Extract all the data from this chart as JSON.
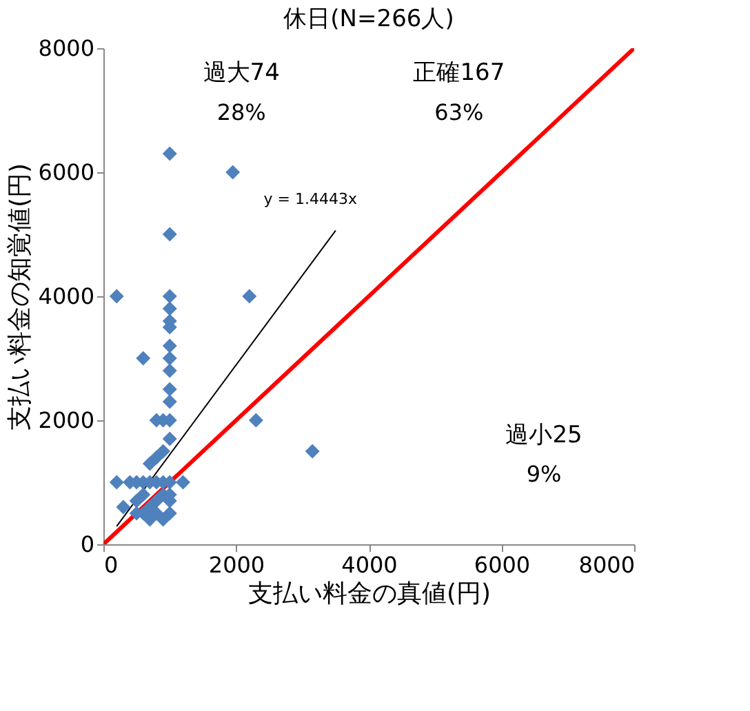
{
  "chart_data": {
    "type": "scatter",
    "title": "休日(N=266人)",
    "xlabel": "支払い料金の真値(円)",
    "ylabel": "支払い料金の知覚値(円)",
    "xlim": [
      0,
      8000
    ],
    "ylim": [
      0,
      8000
    ],
    "xticks": [
      0,
      2000,
      4000,
      6000,
      8000
    ],
    "yticks": [
      0,
      2000,
      4000,
      6000,
      8000
    ],
    "grid": false,
    "legend": false,
    "marker": "diamond",
    "series": [
      {
        "color": "#4f81bd",
        "x": [
          1000,
          1950,
          1000,
          200,
          1000,
          2200,
          1000,
          1000,
          1000,
          600,
          1000,
          1000,
          1000,
          1000,
          1000,
          1000,
          800,
          900,
          2300,
          1000,
          900,
          800,
          700,
          3150,
          1000,
          1200,
          200,
          400,
          500,
          600,
          700,
          800,
          900,
          300,
          500,
          600,
          700,
          800,
          900,
          1000,
          800,
          900,
          1000,
          700,
          600,
          1000,
          500
        ],
        "values": [
          6300,
          6000,
          5000,
          4000,
          4000,
          4000,
          3800,
          3600,
          3500,
          3000,
          3200,
          3000,
          2800,
          2500,
          2300,
          2000,
          2000,
          2000,
          2000,
          1700,
          1500,
          1400,
          1300,
          1500,
          1000,
          1000,
          1000,
          1000,
          1000,
          1000,
          1000,
          1000,
          1000,
          600,
          700,
          800,
          600,
          500,
          400,
          500,
          700,
          800,
          700,
          400,
          500,
          800,
          500
        ]
      },
      {
        "type": "line",
        "marker": "none",
        "color": "#ff0000",
        "x": [
          0,
          8000
        ],
        "values": [
          0,
          8000
        ]
      },
      {
        "type": "line",
        "marker": "none",
        "color": "#000000",
        "x": [
          200,
          3500
        ],
        "values": [
          290,
          5060
        ]
      }
    ],
    "annotations": [
      "過大74",
      "28%",
      "正確167",
      "63%",
      "過小25",
      "9%",
      "y = 1.4443x"
    ]
  }
}
